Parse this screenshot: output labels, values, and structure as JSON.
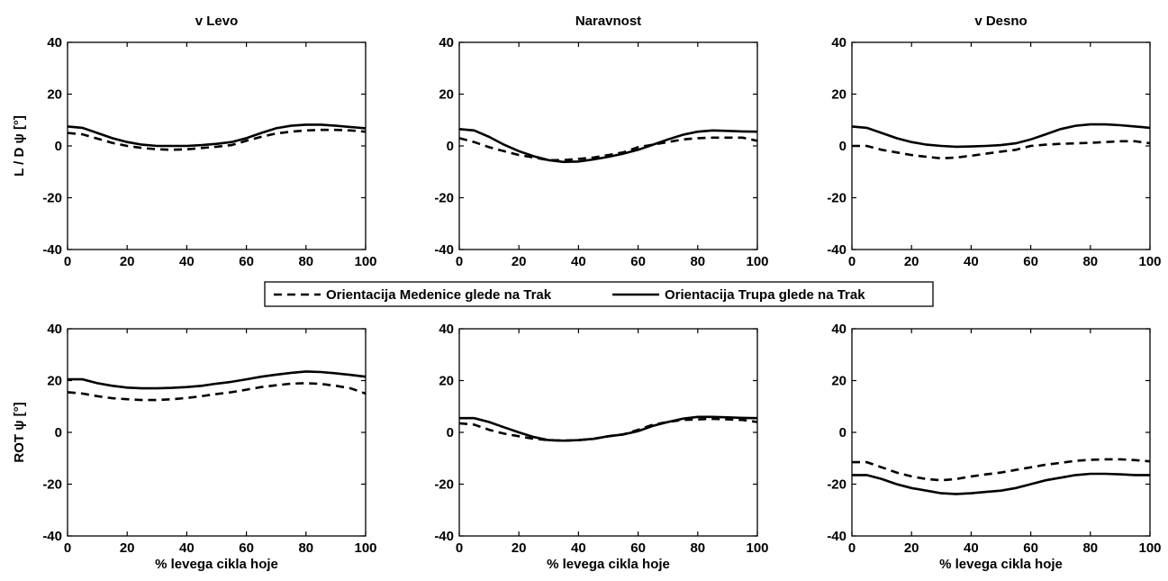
{
  "chart_data": {
    "type": "line",
    "layout": "3x2 grid of line plots, shared legend between rows",
    "column_titles": [
      "v Levo",
      "Naravnost",
      "v Desno"
    ],
    "row_labels": [
      "L / D   ψ  [°]",
      "ROT   ψ  [°]"
    ],
    "xlabel": "%  levega cikla hoje",
    "xlim": [
      0,
      100
    ],
    "ylim": [
      -40,
      40
    ],
    "xticks": [
      0,
      20,
      40,
      60,
      80,
      100
    ],
    "yticks": [
      -40,
      -20,
      0,
      20,
      40
    ],
    "grid": false,
    "legend": {
      "placement": "center, between rows",
      "entries": [
        {
          "label": "Orientacija Medenice glede na Trak",
          "style": "dashed"
        },
        {
          "label": "Orientacija Trupa glede na Trak",
          "style": "solid"
        }
      ]
    },
    "x": [
      0,
      5,
      10,
      15,
      20,
      25,
      30,
      35,
      40,
      45,
      50,
      55,
      60,
      65,
      70,
      75,
      80,
      85,
      90,
      95,
      100
    ],
    "panels": [
      {
        "row": 0,
        "col": 0,
        "series": [
          {
            "style": "solid",
            "values": [
              7.5,
              7,
              5,
              3,
              1.5,
              0.5,
              0,
              0,
              0,
              0.3,
              0.8,
              1.5,
              3,
              5,
              6.8,
              7.8,
              8.2,
              8.2,
              7.8,
              7.3,
              6.8
            ]
          },
          {
            "style": "dashed",
            "values": [
              5,
              4.5,
              2.8,
              1.2,
              0,
              -0.8,
              -1.3,
              -1.5,
              -1.3,
              -0.8,
              -0.3,
              0.3,
              2,
              3.5,
              4.8,
              5.5,
              6,
              6.2,
              6.2,
              6,
              5.5
            ]
          }
        ]
      },
      {
        "row": 0,
        "col": 1,
        "series": [
          {
            "style": "solid",
            "values": [
              6.5,
              6,
              3.5,
              0.5,
              -2,
              -4,
              -5.5,
              -6.2,
              -6,
              -5.2,
              -4.2,
              -3,
              -1.5,
              0.5,
              2.5,
              4.3,
              5.5,
              6,
              5.8,
              5.6,
              5.5
            ]
          },
          {
            "style": "dashed",
            "values": [
              3,
              1.5,
              -0.5,
              -2,
              -3.5,
              -4.5,
              -5.5,
              -5.5,
              -5,
              -4.5,
              -3.5,
              -2.5,
              -0.5,
              0.5,
              1.5,
              2.5,
              3,
              3.2,
              3.2,
              3.2,
              2
            ]
          }
        ]
      },
      {
        "row": 0,
        "col": 2,
        "series": [
          {
            "style": "solid",
            "values": [
              7.5,
              7,
              5,
              3,
              1.5,
              0.5,
              0,
              -0.3,
              -0.2,
              0,
              0.3,
              1,
              2.5,
              4.5,
              6.5,
              7.8,
              8.3,
              8.3,
              8,
              7.5,
              7
            ]
          },
          {
            "style": "dashed",
            "values": [
              0,
              0,
              -1.5,
              -2.5,
              -3.5,
              -4.2,
              -4.8,
              -4.5,
              -3.8,
              -3,
              -2.2,
              -1.5,
              0,
              0.5,
              0.8,
              1,
              1.2,
              1.5,
              1.8,
              1.8,
              1
            ]
          }
        ]
      },
      {
        "row": 1,
        "col": 0,
        "series": [
          {
            "style": "solid",
            "values": [
              20.5,
              20.5,
              19,
              18,
              17.3,
              17,
              17,
              17.2,
              17.5,
              18,
              18.8,
              19.5,
              20.5,
              21.5,
              22.3,
              23,
              23.5,
              23.3,
              22.8,
              22.2,
              21.5
            ]
          },
          {
            "style": "dashed",
            "values": [
              15.5,
              15,
              14,
              13.2,
              12.8,
              12.5,
              12.5,
              12.8,
              13.3,
              14,
              14.8,
              15.5,
              16.5,
              17.5,
              18.2,
              18.8,
              19,
              18.7,
              18,
              17,
              15
            ]
          }
        ]
      },
      {
        "row": 1,
        "col": 1,
        "series": [
          {
            "style": "solid",
            "values": [
              5.5,
              5.5,
              4,
              2,
              0,
              -1.8,
              -3,
              -3.2,
              -3,
              -2.5,
              -1.5,
              -0.8,
              0.5,
              2.5,
              4,
              5.3,
              6,
              6,
              5.8,
              5.6,
              5.5
            ]
          },
          {
            "style": "dashed",
            "values": [
              3.5,
              3,
              1,
              -0.5,
              -1.5,
              -2.5,
              -3,
              -3.2,
              -3,
              -2.5,
              -1.5,
              -0.8,
              1,
              3,
              4,
              4.8,
              5,
              5.2,
              5,
              4.8,
              4
            ]
          }
        ]
      },
      {
        "row": 1,
        "col": 2,
        "series": [
          {
            "style": "solid",
            "values": [
              -16.5,
              -16.5,
              -18,
              -20,
              -21.5,
              -22.5,
              -23.5,
              -23.8,
              -23.5,
              -23,
              -22.5,
              -21.5,
              -20,
              -18.5,
              -17.5,
              -16.5,
              -16,
              -16,
              -16.2,
              -16.5,
              -16.5
            ]
          },
          {
            "style": "dashed",
            "values": [
              -11.5,
              -11.5,
              -13.5,
              -15.5,
              -17,
              -18,
              -18.5,
              -18,
              -17,
              -16.2,
              -15.5,
              -14.5,
              -13.5,
              -12.5,
              -11.8,
              -11,
              -10.6,
              -10.4,
              -10.4,
              -10.7,
              -11.2
            ]
          }
        ]
      }
    ]
  }
}
